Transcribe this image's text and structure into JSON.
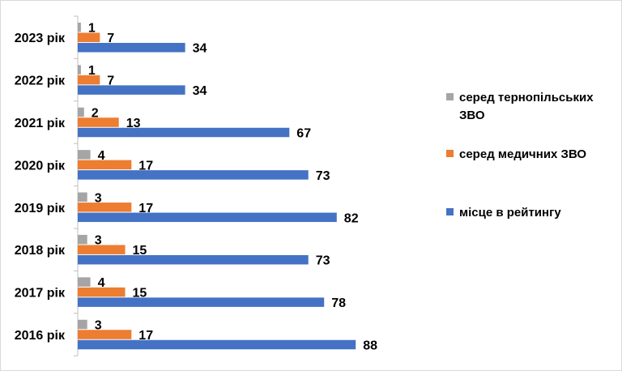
{
  "chart_data": {
    "type": "bar",
    "orientation": "horizontal",
    "categories": [
      "2016 рік",
      "2017 рік",
      "2018 рік",
      "2019 рік",
      "2020 рік",
      "2021 рік",
      "2022 рік",
      "2023 рік"
    ],
    "series": [
      {
        "name": "серед тернопільських ЗВО",
        "color": "#a5a5a5",
        "values": [
          3,
          4,
          3,
          3,
          4,
          2,
          1,
          1
        ]
      },
      {
        "name": "серед медичних ЗВО",
        "color": "#ed7d31",
        "values": [
          17,
          15,
          15,
          17,
          17,
          13,
          7,
          7
        ]
      },
      {
        "name": "місце в рейтингу",
        "color": "#4472c4",
        "values": [
          88,
          78,
          73,
          82,
          73,
          67,
          34,
          34
        ]
      }
    ],
    "legend_position": "right",
    "category_order": "bottom-to-top",
    "gridlines": false,
    "data_labels": true,
    "xlim": [
      0,
      100
    ]
  }
}
